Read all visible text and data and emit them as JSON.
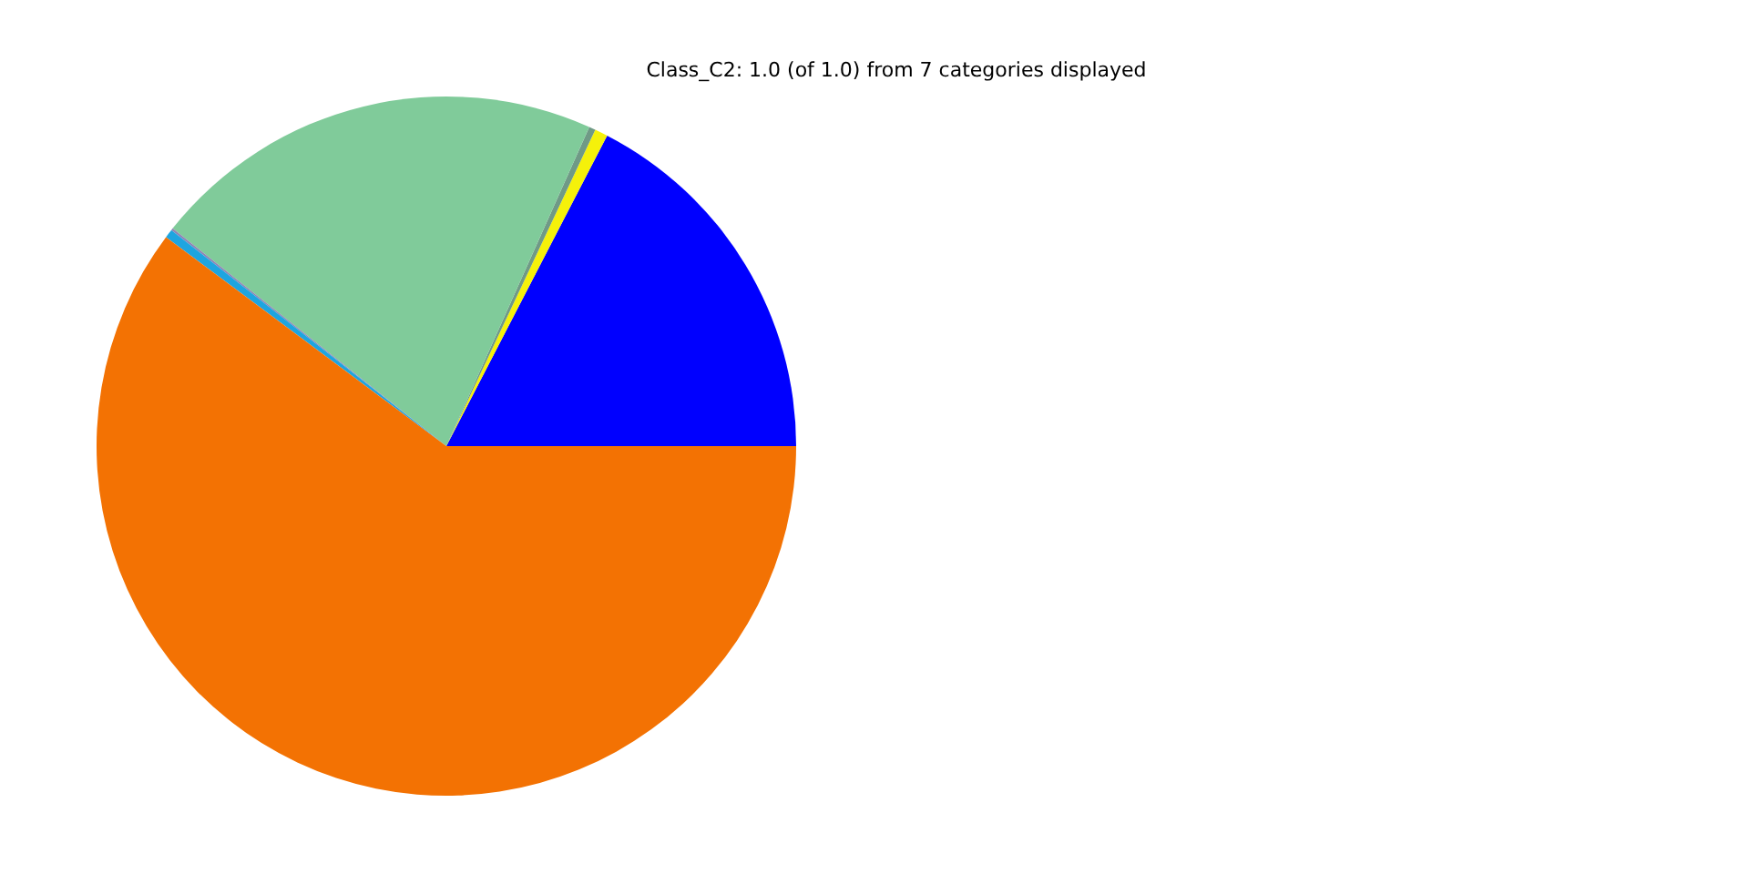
{
  "chart_data": {
    "type": "pie",
    "title": "Class_C2: 1.0 (of 1.0) from 7 categories displayed",
    "categories": [
      null,
      null,
      null,
      null,
      null,
      null,
      null
    ],
    "values": [
      17.4,
      0.6,
      0.3,
      21.0,
      0.1,
      0.4,
      60.2
    ],
    "colors": [
      "#0000ff",
      "#f5f10a",
      "#6f9a86",
      "#80cb9a",
      "#8f86b4",
      "#1ea5e0",
      "#f37203"
    ],
    "legend": false
  }
}
